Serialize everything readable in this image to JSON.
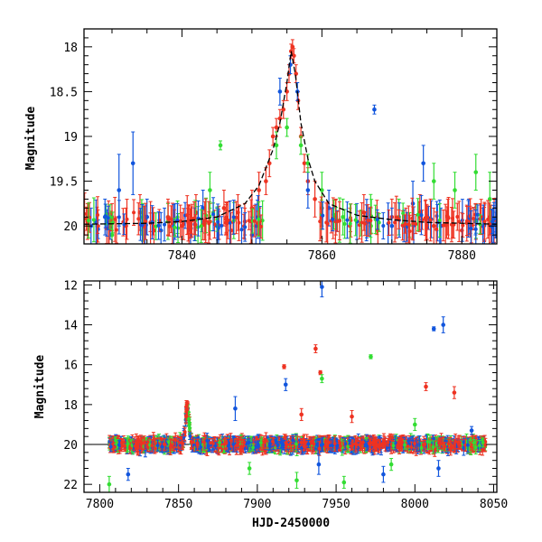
{
  "chart_data": [
    {
      "type": "scatter",
      "panel": "top",
      "title": "",
      "xlabel": "",
      "ylabel": "Magnitude",
      "xlim": [
        7826,
        7885
      ],
      "ylim": [
        20.2,
        17.8
      ],
      "y_inverted": true,
      "xticks": [
        7840,
        7860,
        7880
      ],
      "yticks": [
        18,
        18.5,
        19,
        19.5,
        20
      ],
      "ytick_labels": [
        "18",
        "18.5",
        "19",
        "19.5",
        "20"
      ],
      "grid": false,
      "colors": {
        "red": "#ee3322",
        "blue": "#1155dd",
        "green": "#33dd33",
        "model": "#000000"
      },
      "series": [
        {
          "color": "red",
          "points": [
            [
              7826.5,
              19.95,
              0.2
            ],
            [
              7828,
              20.0,
              0.18
            ],
            [
              7830,
              19.9,
              0.15
            ],
            [
              7832,
              20.0,
              0.2
            ],
            [
              7834,
              19.85,
              0.2
            ],
            [
              7836,
              20.05,
              0.2
            ],
            [
              7838,
              19.9,
              0.2
            ],
            [
              7840,
              20.0,
              0.15
            ],
            [
              7842,
              19.85,
              0.2
            ],
            [
              7844,
              19.95,
              0.2
            ],
            [
              7846,
              19.8,
              0.2
            ],
            [
              7847,
              20.05,
              0.2
            ],
            [
              7848,
              19.85,
              0.2
            ],
            [
              7849,
              19.95,
              0.15
            ],
            [
              7850,
              19.8,
              0.2
            ],
            [
              7851,
              19.6,
              0.2
            ],
            [
              7852,
              19.5,
              0.15
            ],
            [
              7852.5,
              19.3,
              0.15
            ],
            [
              7853,
              19.0,
              0.1
            ],
            [
              7853.5,
              18.9,
              0.1
            ],
            [
              7854,
              18.8,
              0.1
            ],
            [
              7854.5,
              18.7,
              0.1
            ],
            [
              7855,
              18.5,
              0.1
            ],
            [
              7855.3,
              18.3,
              0.1
            ],
            [
              7855.6,
              18.05,
              0.08
            ],
            [
              7855.8,
              18.0,
              0.08
            ],
            [
              7856,
              18.1,
              0.08
            ],
            [
              7856.3,
              18.3,
              0.1
            ],
            [
              7856.6,
              18.6,
              0.1
            ],
            [
              7857,
              19.0,
              0.1
            ],
            [
              7857.5,
              19.3,
              0.1
            ],
            [
              7858,
              19.5,
              0.15
            ],
            [
              7859,
              19.7,
              0.2
            ],
            [
              7860,
              19.8,
              0.2
            ],
            [
              7862,
              19.9,
              0.2
            ],
            [
              7864,
              20.0,
              0.2
            ],
            [
              7866,
              19.85,
              0.2
            ],
            [
              7868,
              20.05,
              0.2
            ],
            [
              7870,
              19.9,
              0.2
            ],
            [
              7872,
              20.0,
              0.2
            ],
            [
              7874,
              19.85,
              0.2
            ],
            [
              7876,
              20.0,
              0.2
            ],
            [
              7878,
              19.9,
              0.2
            ],
            [
              7880,
              20.05,
              0.2
            ],
            [
              7882,
              19.95,
              0.2
            ],
            [
              7884,
              19.9,
              0.2
            ]
          ]
        },
        {
          "color": "blue",
          "points": [
            [
              7827,
              20.0,
              0.2
            ],
            [
              7829,
              19.9,
              0.2
            ],
            [
              7831,
              19.6,
              0.4
            ],
            [
              7833,
              19.3,
              0.35
            ],
            [
              7835,
              19.9,
              0.2
            ],
            [
              7837,
              20.05,
              0.2
            ],
            [
              7839,
              19.95,
              0.2
            ],
            [
              7843,
              19.8,
              0.2
            ],
            [
              7845,
              20.0,
              0.2
            ],
            [
              7850,
              20.1,
              0.2
            ],
            [
              7854,
              18.5,
              0.15
            ],
            [
              7855.5,
              18.2,
              0.1
            ],
            [
              7856.5,
              18.5,
              0.1
            ],
            [
              7858,
              19.6,
              0.2
            ],
            [
              7861,
              19.8,
              0.2
            ],
            [
              7865,
              19.95,
              0.2
            ],
            [
              7867.5,
              18.7,
              0.05
            ],
            [
              7870,
              20.0,
              0.2
            ],
            [
              7873,
              19.75,
              0.25
            ],
            [
              7874.5,
              19.3,
              0.2
            ],
            [
              7877,
              20.0,
              0.2
            ],
            [
              7881,
              19.9,
              0.2
            ],
            [
              7883,
              20.0,
              0.2
            ]
          ]
        },
        {
          "color": "green",
          "points": [
            [
              7830,
              20.1,
              0.2
            ],
            [
              7838,
              19.95,
              0.2
            ],
            [
              7844,
              19.6,
              0.2
            ],
            [
              7845.5,
              19.1,
              0.05
            ],
            [
              7853.5,
              19.1,
              0.15
            ],
            [
              7855,
              18.9,
              0.1
            ],
            [
              7857,
              19.1,
              0.1
            ],
            [
              7858,
              19.3,
              0.1
            ],
            [
              7860,
              19.6,
              0.2
            ],
            [
              7863,
              19.9,
              0.2
            ],
            [
              7867,
              20.0,
              0.2
            ],
            [
              7871,
              19.9,
              0.2
            ],
            [
              7876,
              19.5,
              0.2
            ],
            [
              7879,
              19.6,
              0.2
            ],
            [
              7882,
              19.4,
              0.2
            ],
            [
              7884,
              19.7,
              0.3
            ]
          ]
        }
      ],
      "model_curve": [
        [
          7826,
          19.98
        ],
        [
          7835,
          19.97
        ],
        [
          7840,
          19.95
        ],
        [
          7845,
          19.9
        ],
        [
          7849,
          19.75
        ],
        [
          7851,
          19.55
        ],
        [
          7853,
          19.15
        ],
        [
          7854,
          18.85
        ],
        [
          7855,
          18.4
        ],
        [
          7855.6,
          18.05
        ],
        [
          7856.2,
          18.3
        ],
        [
          7857,
          18.85
        ],
        [
          7858,
          19.25
        ],
        [
          7859,
          19.5
        ],
        [
          7861,
          19.75
        ],
        [
          7865,
          19.88
        ],
        [
          7870,
          19.93
        ],
        [
          7875,
          19.96
        ],
        [
          7885,
          19.98
        ]
      ]
    },
    {
      "type": "scatter",
      "panel": "bottom",
      "title": "",
      "xlabel": "HJD-2450000",
      "ylabel": "Magnitude",
      "xlim": [
        7790,
        8052
      ],
      "ylim": [
        22.4,
        11.8
      ],
      "y_inverted": true,
      "xticks": [
        7800,
        7850,
        7900,
        7950,
        8000,
        8050
      ],
      "yticks": [
        12,
        14,
        16,
        18,
        20,
        22
      ],
      "ytick_labels": [
        "12",
        "14",
        "16",
        "18",
        "20",
        "22"
      ],
      "grid": false,
      "baseline_magnitude": 20,
      "outliers": [
        {
          "color": "blue",
          "points": [
            [
              7818,
              21.5,
              0.3
            ],
            [
              7886,
              18.2,
              0.6
            ],
            [
              7918,
              17.0,
              0.3
            ],
            [
              7941,
              12.1,
              0.5
            ],
            [
              7939,
              21.0,
              0.5
            ],
            [
              8012,
              14.2,
              0.1
            ],
            [
              8018,
              14.0,
              0.4
            ],
            [
              7980,
              21.5,
              0.4
            ],
            [
              8015,
              21.2,
              0.4
            ],
            [
              8036,
              19.3,
              0.2
            ]
          ]
        },
        {
          "color": "red",
          "points": [
            [
              7855,
              18.1,
              0.3
            ],
            [
              7917,
              16.1,
              0.1
            ],
            [
              7937,
              15.2,
              0.2
            ],
            [
              7940,
              16.4,
              0.1
            ],
            [
              8007,
              17.1,
              0.2
            ],
            [
              8025,
              17.4,
              0.3
            ],
            [
              7928,
              18.5,
              0.3
            ],
            [
              7960,
              18.6,
              0.3
            ]
          ]
        },
        {
          "color": "green",
          "points": [
            [
              7806,
              22.0,
              0.4
            ],
            [
              7941,
              16.7,
              0.2
            ],
            [
              7972,
              15.6,
              0.1
            ],
            [
              7895,
              21.2,
              0.3
            ],
            [
              7925,
              21.8,
              0.4
            ],
            [
              7955,
              21.9,
              0.3
            ],
            [
              7985,
              21.0,
              0.3
            ],
            [
              8000,
              19.0,
              0.3
            ]
          ]
        }
      ]
    }
  ]
}
